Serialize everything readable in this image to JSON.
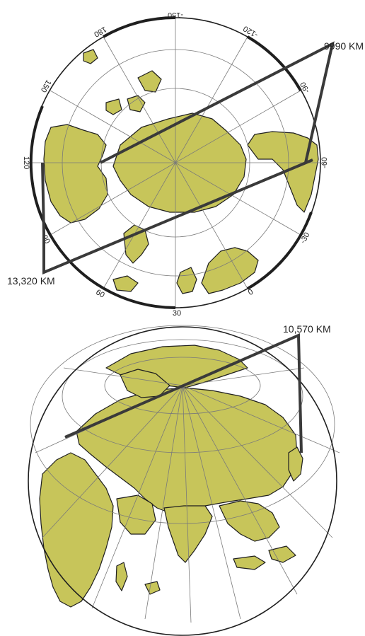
{
  "maps": {
    "top": {
      "longitude_labels": [
        "-150",
        "-120",
        "-90",
        "-60",
        "-30",
        "0",
        "30",
        "60",
        "90",
        "120",
        "150",
        "180"
      ],
      "distance_labels": {
        "upper_right": "9990 KM",
        "lower_left": "13,320 KM"
      }
    },
    "bottom": {
      "distance_label": "10,570 KM"
    }
  },
  "colors": {
    "land": "#c7c55a",
    "outline": "#1f1f1f",
    "graticule": "#7a7a7a",
    "callout_line": "#3a3a3a"
  }
}
